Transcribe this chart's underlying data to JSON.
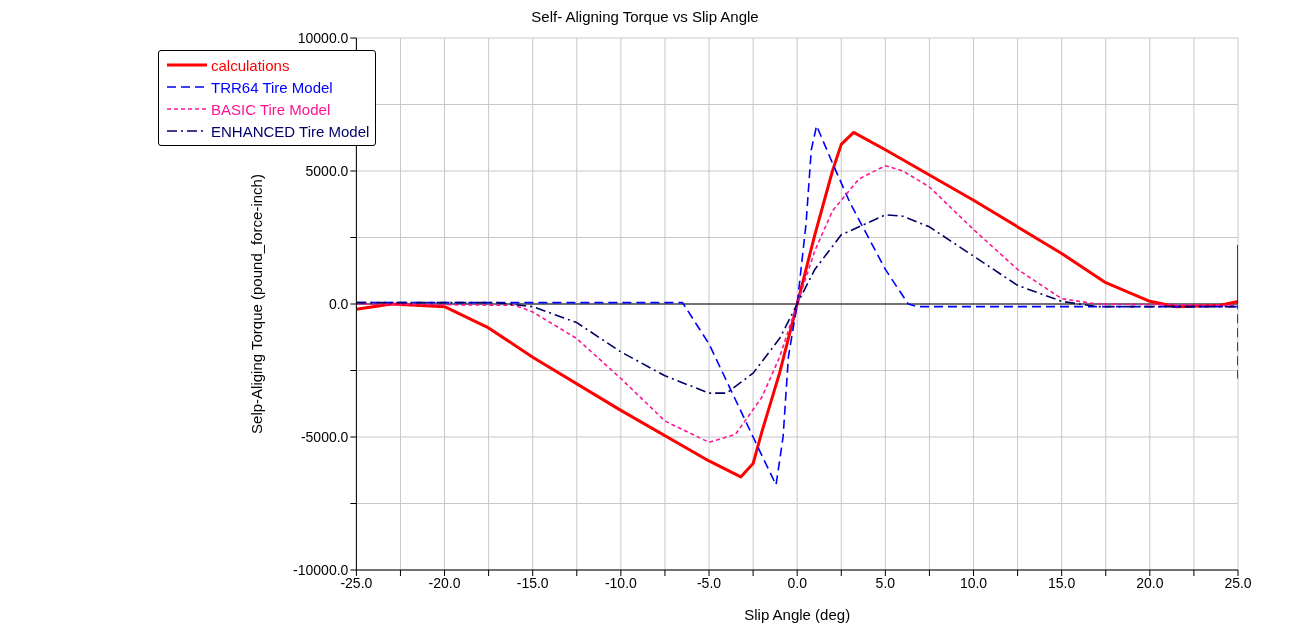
{
  "chart_data": {
    "type": "line",
    "title": "Self- Aligning Torque vs Slip Angle",
    "xlabel": "Slip Angle (deg)",
    "ylabel": "Selp-Aliging Torque (pound_force-inch)",
    "xlim": [
      -25,
      25
    ],
    "xticks": [
      {
        "value": -25,
        "label": "-25.0"
      },
      {
        "value": -22.5,
        "label": null
      },
      {
        "value": -20,
        "label": "-20.0"
      },
      {
        "value": -17.5,
        "label": null
      },
      {
        "value": -15,
        "label": "-15.0"
      },
      {
        "value": -12.5,
        "label": null
      },
      {
        "value": -10,
        "label": "-10.0"
      },
      {
        "value": -7.5,
        "label": null
      },
      {
        "value": -5,
        "label": "-5.0"
      },
      {
        "value": -2.5,
        "label": null
      },
      {
        "value": 0,
        "label": "0.0"
      },
      {
        "value": 2.5,
        "label": null
      },
      {
        "value": 5,
        "label": "5.0"
      },
      {
        "value": 7.5,
        "label": null
      },
      {
        "value": 10,
        "label": "10.0"
      },
      {
        "value": 12.5,
        "label": null
      },
      {
        "value": 15,
        "label": "15.0"
      },
      {
        "value": 17.5,
        "label": null
      },
      {
        "value": 20,
        "label": "20.0"
      },
      {
        "value": 22.5,
        "label": null
      },
      {
        "value": 25,
        "label": "25.0"
      }
    ],
    "ylim": [
      -10000,
      10000
    ],
    "yticks": [
      {
        "value": -10000,
        "label": "-10000.0"
      },
      {
        "value": -7500,
        "label": null
      },
      {
        "value": -5000,
        "label": "-5000.0"
      },
      {
        "value": -2500,
        "label": null
      },
      {
        "value": 0,
        "label": "0.0"
      },
      {
        "value": 2500,
        "label": null
      },
      {
        "value": 5000,
        "label": "5000.0"
      },
      {
        "value": 7500,
        "label": null
      },
      {
        "value": 10000,
        "label": "10000.0"
      }
    ],
    "grid": true,
    "legend": "top left",
    "marker": "none",
    "ref_lines": [
      {
        "axis": "y",
        "value": 0,
        "color": "#000000"
      }
    ],
    "series": [
      {
        "name": "calculations",
        "color": "#ff0000",
        "line_style": "solid",
        "x": [
          -25,
          -23,
          -20,
          -17.5,
          -15,
          -10,
          -5,
          -3.2,
          -2.5,
          -2,
          -1,
          0,
          1,
          2,
          2.5,
          3.2,
          5,
          10,
          15,
          17.5,
          20,
          21.5,
          24,
          25
        ],
        "values": [
          -200,
          0,
          -100,
          -900,
          -2000,
          -4000,
          -5900,
          -6500,
          -6000,
          -4800,
          -2600,
          0,
          2600,
          5000,
          6000,
          6450,
          5800,
          3900,
          1900,
          800,
          100,
          -100,
          -50,
          100
        ]
      },
      {
        "name": "TRR64 Tire Model",
        "color": "#0000ff",
        "line_style": "dashed",
        "x": [
          -25,
          -16,
          -6.5,
          -5,
          -3.5,
          -2,
          -1.2,
          -0.8,
          -0.5,
          0,
          0.5,
          0.8,
          1.1,
          2,
          3,
          5,
          6.3,
          6.8,
          25,
          25,
          25
        ],
        "values": [
          50,
          50,
          50,
          -1500,
          -3600,
          -5700,
          -6800,
          -5000,
          -2000,
          0,
          3000,
          5800,
          6700,
          5300,
          3800,
          1300,
          0,
          -100,
          -100,
          2200,
          -2800
        ]
      },
      {
        "name": "BASIC Tire Model",
        "color": "#ff1493",
        "line_style": "dotted",
        "x": [
          -25,
          -16,
          -15,
          -12.5,
          -10,
          -7.5,
          -5,
          -3.5,
          -2,
          -1,
          0,
          1,
          2,
          3.5,
          5,
          6,
          7.5,
          10,
          12.5,
          15,
          17,
          25
        ],
        "values": [
          0,
          -50,
          -300,
          -1300,
          -2800,
          -4400,
          -5200,
          -4900,
          -3500,
          -2000,
          0,
          2000,
          3500,
          4700,
          5200,
          5000,
          4400,
          2800,
          1300,
          200,
          0,
          -50
        ]
      },
      {
        "name": "ENHANCED Tire Model",
        "color": "#000066",
        "line_style": "dashdot",
        "x": [
          -25,
          -17,
          -15,
          -12.5,
          -10,
          -7.5,
          -5,
          -4,
          -2.5,
          -1,
          0,
          1,
          2.5,
          5,
          6,
          7.5,
          10,
          12.5,
          15,
          17,
          25
        ],
        "values": [
          50,
          50,
          -100,
          -700,
          -1800,
          -2700,
          -3350,
          -3350,
          -2600,
          -1300,
          0,
          1300,
          2600,
          3350,
          3300,
          2900,
          1800,
          700,
          100,
          -100,
          -100
        ]
      }
    ]
  }
}
